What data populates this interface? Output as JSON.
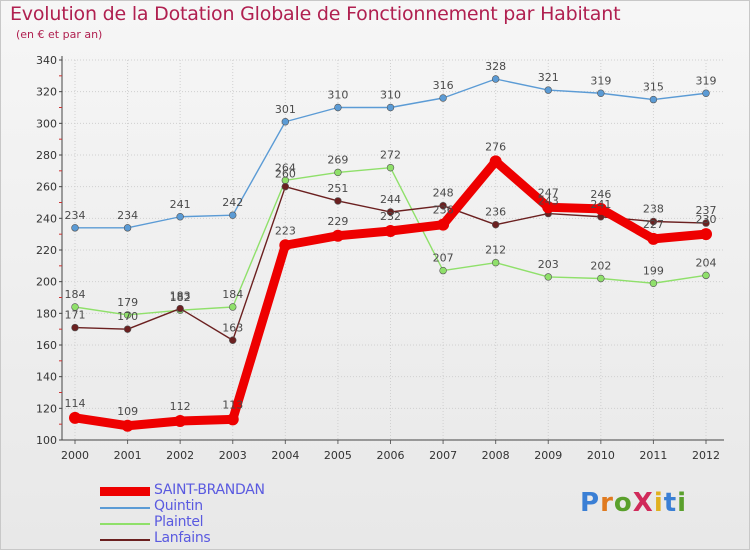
{
  "chart_title": "Evolution de la Dotation Globale de Fonctionnement par Habitant",
  "chart_subtitle": "(en € et par an)",
  "logo_text": "ProXiti",
  "chart_data": {
    "type": "line",
    "title": "Evolution de la Dotation Globale de Fonctionnement par Habitant",
    "subtitle": "(en € et par an)",
    "xlabel": "",
    "ylabel": "",
    "categories": [
      "2000",
      "2001",
      "2002",
      "2003",
      "2004",
      "2005",
      "2006",
      "2007",
      "2008",
      "2009",
      "2010",
      "2011",
      "2012"
    ],
    "ylim": [
      100,
      340
    ],
    "yticks": [
      100,
      120,
      140,
      160,
      180,
      200,
      220,
      240,
      260,
      280,
      300,
      320,
      340
    ],
    "grid": true,
    "legend_position": "bottom-left",
    "series": [
      {
        "name": "SAINT-BRANDAN",
        "color": "#ee0000",
        "emphasis": "thick",
        "values": [
          114,
          109,
          112,
          113,
          223,
          229,
          232,
          236,
          276,
          247,
          246,
          227,
          230
        ]
      },
      {
        "name": "Quintin",
        "color": "#5b9bd5",
        "emphasis": "thin",
        "values": [
          234,
          234,
          241,
          242,
          301,
          310,
          310,
          316,
          328,
          321,
          319,
          315,
          319
        ]
      },
      {
        "name": "Plaintel",
        "color": "#8fe06a",
        "emphasis": "thin",
        "values": [
          184,
          179,
          182,
          184,
          264,
          269,
          272,
          207,
          212,
          203,
          202,
          199,
          204
        ]
      },
      {
        "name": "Lanfains",
        "color": "#6b2020",
        "emphasis": "thin",
        "values": [
          171,
          170,
          183,
          163,
          260,
          251,
          244,
          248,
          236,
          243,
          241,
          238,
          237
        ]
      }
    ]
  }
}
